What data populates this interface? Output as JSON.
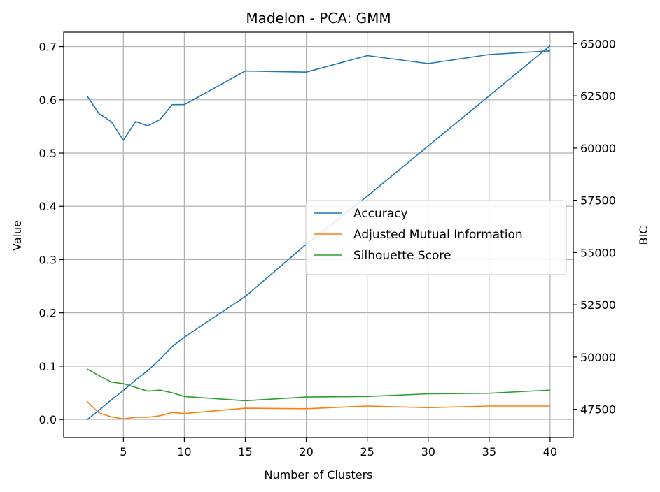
{
  "chart_data": {
    "type": "line",
    "title": "Madelon - PCA: GMM",
    "xlabel": "Number of Clusters",
    "ylabel": "Value",
    "y2label": "BIC",
    "xlim": [
      0.1,
      41.9
    ],
    "ylim": [
      -0.034,
      0.727
    ],
    "y2lim": [
      46150,
      65550
    ],
    "grid": true,
    "legend_position": "center-right",
    "x_ticks": [
      5,
      10,
      15,
      20,
      25,
      30,
      35,
      40
    ],
    "y_ticks": [
      0.0,
      0.1,
      0.2,
      0.3,
      0.4,
      0.5,
      0.6,
      0.7
    ],
    "y_tick_labels": [
      "0.0",
      "0.1",
      "0.2",
      "0.3",
      "0.4",
      "0.5",
      "0.6",
      "0.7"
    ],
    "y2_ticks": [
      47500,
      50000,
      52500,
      55000,
      57500,
      60000,
      62500,
      65000
    ],
    "series": [
      {
        "name": "Accuracy",
        "axis": "left",
        "color": "#1f77b4",
        "x": [
          2,
          3,
          4,
          5,
          6,
          7,
          8,
          9,
          10,
          15,
          20,
          25,
          30,
          35,
          40
        ],
        "y": [
          0.608,
          0.574,
          0.559,
          0.524,
          0.559,
          0.551,
          0.563,
          0.591,
          0.591,
          0.654,
          0.652,
          0.683,
          0.668,
          0.685,
          0.692
        ]
      },
      {
        "name": "Adjusted Mutual Information",
        "axis": "left",
        "color": "#ff7f0e",
        "x": [
          2,
          3,
          4,
          5,
          6,
          7,
          8,
          9,
          10,
          15,
          20,
          25,
          30,
          35,
          40
        ],
        "y": [
          0.034,
          0.012,
          0.005,
          0.001,
          0.004,
          0.004,
          0.007,
          0.013,
          0.011,
          0.021,
          0.02,
          0.025,
          0.022,
          0.025,
          0.025
        ]
      },
      {
        "name": "Silhouette Score",
        "axis": "left",
        "color": "#2ca02c",
        "x": [
          2,
          3,
          4,
          5,
          6,
          7,
          8,
          9,
          10,
          15,
          20,
          25,
          30,
          35,
          40
        ],
        "y": [
          0.095,
          0.082,
          0.07,
          0.067,
          0.06,
          0.053,
          0.055,
          0.05,
          0.043,
          0.035,
          0.042,
          0.043,
          0.048,
          0.049,
          0.055
        ]
      },
      {
        "axis": "right",
        "color": "#1f77b4",
        "x": [
          2,
          3,
          4,
          5,
          6,
          7,
          8,
          9,
          10,
          15,
          20,
          25,
          30,
          35,
          40
        ],
        "y": [
          47000,
          47450,
          47950,
          48400,
          48900,
          49350,
          49900,
          50500,
          50950,
          52900,
          55400,
          57700,
          60100,
          62500,
          64900
        ]
      }
    ]
  }
}
